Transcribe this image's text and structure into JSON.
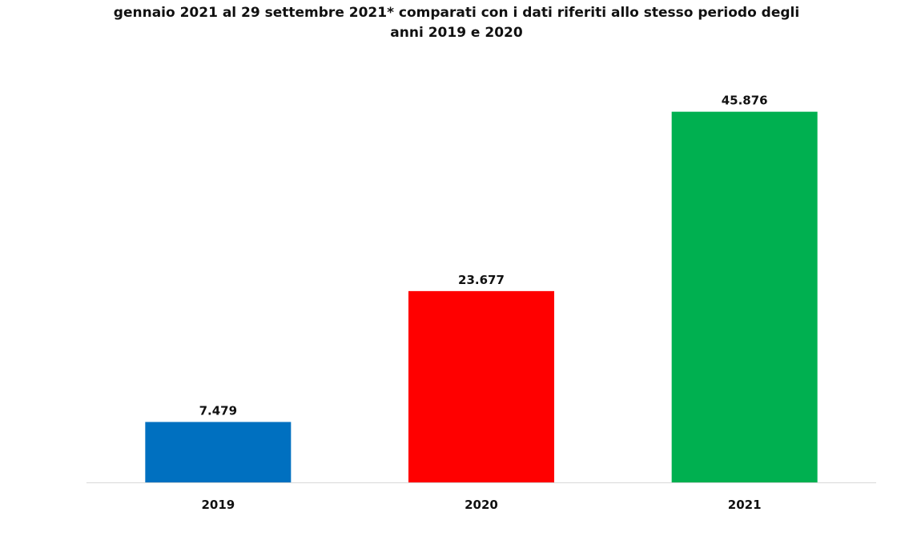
{
  "chart_data": {
    "type": "bar",
    "title_lines": [
      "gennaio 2021 al 29 settembre 2021* comparati con i dati riferiti allo stesso periodo degli",
      "anni 2019  e 2020"
    ],
    "categories": [
      "2019",
      "2020",
      "2021"
    ],
    "values": [
      7479,
      23677,
      45876
    ],
    "value_labels": [
      "7.479",
      "23.677",
      "45.876"
    ],
    "colors": [
      "#0070c0",
      "#ff0000",
      "#00b050"
    ],
    "xlabel": "",
    "ylabel": "",
    "ylim": [
      0,
      50000
    ],
    "grid": false,
    "legend": "none"
  },
  "colors": {
    "axis": "#d9d9d9"
  }
}
